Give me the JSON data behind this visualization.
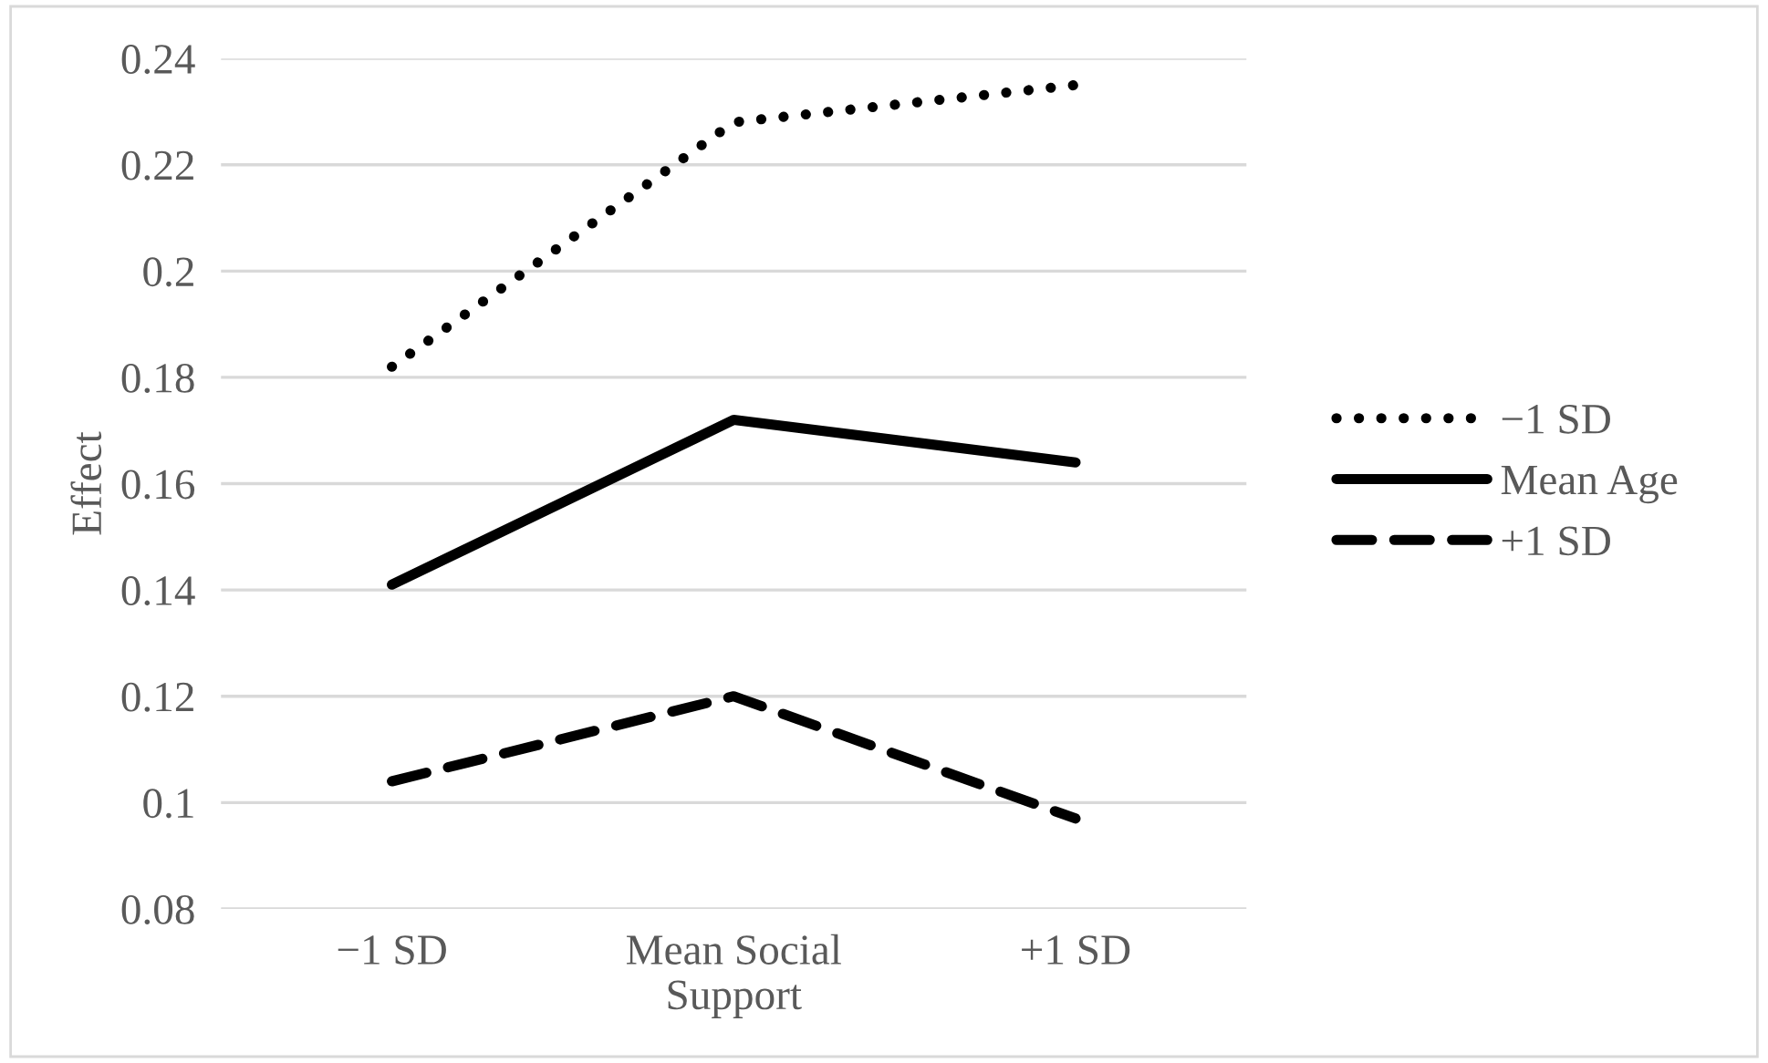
{
  "chart_data": {
    "type": "line",
    "ylabel": "Effect",
    "categories": [
      "−1 SD",
      "Mean Social\nSupport",
      "+1 SD"
    ],
    "series": [
      {
        "name": "−1 SD",
        "color": "#000000",
        "line_style": "dotted",
        "values": [
          0.182,
          0.228,
          0.235
        ]
      },
      {
        "name": "Mean Age",
        "color": "#000000",
        "line_style": "solid",
        "values": [
          0.141,
          0.172,
          0.164
        ]
      },
      {
        "name": "+1 SD",
        "color": "#000000",
        "line_style": "dashed",
        "values": [
          0.104,
          0.12,
          0.097
        ]
      }
    ],
    "ylim": [
      0.08,
      0.24
    ],
    "yticks": [
      0.08,
      0.1,
      0.12,
      0.14,
      0.16,
      0.18,
      0.2,
      0.22,
      0.24
    ],
    "grid": "y",
    "legend": "right",
    "marker": "none"
  }
}
